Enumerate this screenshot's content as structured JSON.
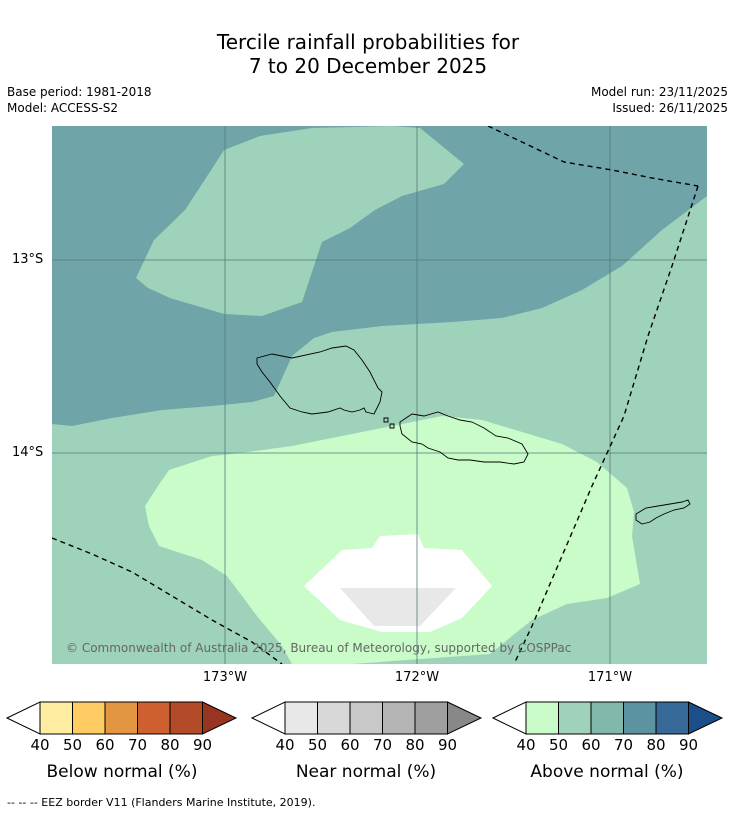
{
  "title_line1": "Tercile rainfall probabilities for",
  "title_line2": "7 to 20 December 2025",
  "meta_left": {
    "base_period": "Base period: 1981-2018",
    "model": "Model: ACCESS-S2"
  },
  "meta_right": {
    "model_run": "Model run: 23/11/2025",
    "issued": "Issued: 26/11/2025"
  },
  "lat_labels": [
    "13°S",
    "14°S"
  ],
  "lon_labels": [
    "173°W",
    "172°W",
    "171°W"
  ],
  "copyright": "© Commonwealth of Australia 2025, Bureau of Meteorology, supported by COSPPac",
  "colorbars": [
    {
      "title": "Below normal (%)",
      "ticks": [
        "40",
        "50",
        "60",
        "70",
        "80",
        "90"
      ],
      "colors": [
        "#ffffff",
        "#ffeea1",
        "#fecc63",
        "#e39541",
        "#cd5f30",
        "#b34a28",
        "#983520"
      ]
    },
    {
      "title": "Near normal (%)",
      "ticks": [
        "40",
        "50",
        "60",
        "70",
        "80",
        "90"
      ],
      "colors": [
        "#ffffff",
        "#e8e8e8",
        "#d8d8d8",
        "#c8c8c8",
        "#b5b5b5",
        "#9f9f9f",
        "#888888"
      ]
    },
    {
      "title": "Above normal (%)",
      "ticks": [
        "40",
        "50",
        "60",
        "70",
        "80",
        "90"
      ],
      "colors": [
        "#ffffff",
        "#c9fcc9",
        "#9fd2ba",
        "#82b7ac",
        "#5b93a0",
        "#366997",
        "#1a4f8a"
      ]
    }
  ],
  "footnote": "-- -- -- EEZ border V11 (Flanders Marine Institute, 2019).",
  "map_colors": {
    "above_60": "#6fa4a8",
    "above_50": "#9fd2ba",
    "above_40": "#c9fcc9",
    "near_40": "#ffffff",
    "near_50": "#e8e8e8"
  }
}
